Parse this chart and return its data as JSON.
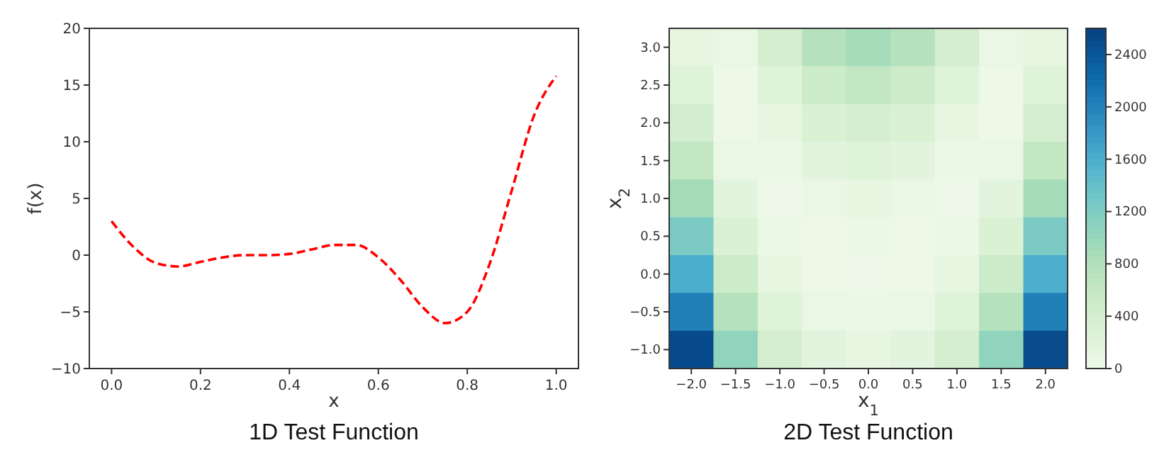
{
  "chart_data": [
    {
      "type": "line",
      "title": "1D Test Function",
      "xlabel": "x",
      "ylabel": "f(x)",
      "x": [
        0,
        0.05,
        0.1,
        0.15,
        0.2,
        0.25,
        0.3,
        0.35,
        0.4,
        0.45,
        0.5,
        0.55,
        0.6,
        0.65,
        0.7,
        0.75,
        0.8,
        0.85,
        0.9,
        0.95,
        1.0
      ],
      "series": [
        {
          "color": "#ff0000",
          "line_style": "dashed",
          "values": [
            3.0,
            0.7,
            -0.7,
            -1.0,
            -0.6,
            -0.2,
            0.0,
            0.0,
            0.1,
            0.5,
            0.9,
            0.9,
            -0.2,
            -2.2,
            -4.6,
            -6.0,
            -5.0,
            -0.8,
            5.7,
            12.3,
            15.8
          ]
        }
      ],
      "xlim": [
        -0.05,
        1.05
      ],
      "xticks": [
        {
          "value": 0,
          "label": "0.0"
        },
        0.2,
        0.4,
        0.6,
        0.8,
        {
          "value": 1,
          "label": "1.0"
        }
      ],
      "ylim": [
        -10,
        20
      ],
      "yticks": [
        {
          "value": -10,
          "label": "−10"
        },
        {
          "value": -5,
          "label": "−5"
        },
        0,
        5,
        10,
        15,
        20
      ],
      "grid": false
    },
    {
      "type": "heatmap",
      "title": "2D Test Function",
      "xlabel": "x$_{1}$",
      "ylabel": "x$_{2}$",
      "categories": [
        "−2.0",
        "−1.5",
        "−1.0",
        "−0.5",
        "0.0",
        "0.5",
        "1.0",
        "1.5",
        "2.0"
      ],
      "y_categories": [
        "3.0",
        "2.5",
        "2.0",
        "1.5",
        "1.0",
        "0.5",
        "0.0",
        "−0.5",
        "−1.0"
      ],
      "cells": [
        [
          110,
          60,
          400,
          760,
          900,
          760,
          400,
          60,
          100
        ],
        [
          230,
          10,
          230,
          510,
          630,
          510,
          230,
          10,
          230
        ],
        [
          410,
          10,
          100,
          310,
          400,
          310,
          100,
          10,
          400
        ],
        [
          630,
          60,
          30,
          160,
          230,
          160,
          30,
          60,
          630
        ],
        [
          910,
          160,
          0,
          60,
          100,
          60,
          0,
          160,
          900
        ],
        [
          1230,
          310,
          30,
          10,
          30,
          10,
          30,
          310,
          1230
        ],
        [
          1610,
          510,
          100,
          10,
          0,
          10,
          100,
          510,
          1600
        ],
        [
          2030,
          760,
          230,
          60,
          30,
          60,
          230,
          760,
          2030
        ],
        [
          2510,
          1060,
          400,
          160,
          100,
          160,
          400,
          1060,
          2500
        ]
      ],
      "clim": [
        0,
        2600
      ],
      "cticks": [
        0,
        400,
        800,
        1200,
        1600,
        2000,
        2400
      ]
    }
  ]
}
